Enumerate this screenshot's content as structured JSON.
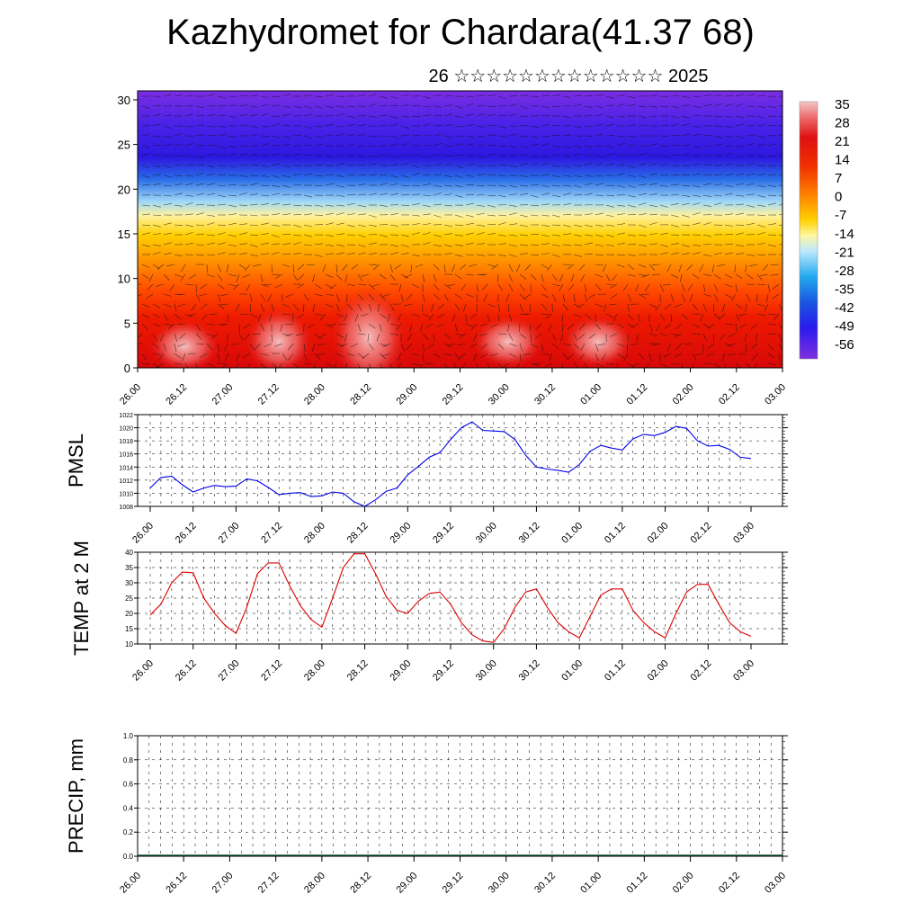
{
  "title": "Kazhydromet for Chardara(41.37 68)",
  "subtitle": "26 ☆☆☆☆☆☆☆☆☆☆☆☆☆ 2025",
  "chart_data": [
    {
      "type": "heatmap",
      "title": "",
      "ylim": [
        0,
        31
      ],
      "yticks": [
        0,
        5,
        10,
        15,
        20,
        25,
        30
      ],
      "x_tick_labels": [
        "26.00",
        "26.12",
        "27.00",
        "27.12",
        "28.00",
        "28.12",
        "29.00",
        "29.12",
        "30.00",
        "30.12",
        "01.00",
        "01.12",
        "02.00",
        "02.12",
        "03.00"
      ],
      "colorbar_labels": [
        "35",
        "28",
        "21",
        "14",
        "7",
        "0",
        "-7",
        "-14",
        "-21",
        "-28",
        "-35",
        "-42",
        "-49",
        "-56"
      ],
      "colorbar_range": [
        -63,
        42
      ],
      "overlay": "wind barbs"
    },
    {
      "type": "line",
      "ylabel": "PMSL",
      "ylim": [
        1008,
        1022
      ],
      "yticks": [
        "1008",
        "1010",
        "1012",
        "1014",
        "1016",
        "1018",
        "1020",
        "1022"
      ],
      "x_tick_labels": [
        "26.00",
        "26.12",
        "27.00",
        "27.12",
        "28.00",
        "28.12",
        "29.00",
        "29.12",
        "30.00",
        "30.12",
        "01.00",
        "01.12",
        "02.00",
        "02.12",
        "03.00"
      ],
      "color": "#0000ee",
      "values": [
        1010.8,
        1012.4,
        1012.6,
        1011.3,
        1010.2,
        1010.8,
        1011.2,
        1011.0,
        1011.1,
        1012.2,
        1011.9,
        1010.9,
        1009.8,
        1010.0,
        1010.1,
        1009.5,
        1009.6,
        1010.2,
        1010.0,
        1008.7,
        1008.0,
        1009.0,
        1010.3,
        1010.8,
        1012.8,
        1014.1,
        1015.5,
        1016.2,
        1018.2,
        1020.0,
        1020.9,
        1019.6,
        1019.5,
        1019.4,
        1018.2,
        1015.8,
        1014.0,
        1013.7,
        1013.5,
        1013.2,
        1014.4,
        1016.4,
        1017.3,
        1016.9,
        1016.6,
        1018.3,
        1019.0,
        1018.8,
        1019.3,
        1020.2,
        1019.9,
        1018.0,
        1017.2,
        1017.3,
        1016.7,
        1015.5,
        1015.3
      ],
      "grid": true
    },
    {
      "type": "line",
      "ylabel": "TEMP at 2 M",
      "ylim": [
        10,
        40
      ],
      "yticks": [
        "10",
        "15",
        "20",
        "25",
        "30",
        "35",
        "40"
      ],
      "x_tick_labels": [
        "26.00",
        "26.12",
        "27.00",
        "27.12",
        "28.00",
        "28.12",
        "29.00",
        "29.12",
        "30.00",
        "30.12",
        "01.00",
        "01.12",
        "02.00",
        "02.12",
        "03.00"
      ],
      "color": "#dd0000",
      "values": [
        19.5,
        23,
        30,
        33.5,
        33.3,
        25,
        20,
        16,
        13.5,
        22,
        33,
        36.5,
        36.5,
        29,
        22.5,
        18,
        15.5,
        25,
        35,
        39.5,
        39.5,
        33,
        25.5,
        21,
        20,
        24,
        26.5,
        27,
        23,
        17,
        13,
        11,
        10.5,
        15,
        22,
        27,
        28,
        22,
        17,
        14,
        12,
        19,
        26,
        28,
        28,
        21,
        17,
        14,
        12,
        20,
        27,
        29.5,
        29.5,
        23,
        17,
        14,
        12.5
      ],
      "grid": true
    },
    {
      "type": "bar",
      "ylabel": "PRECIP, mm",
      "ylim": [
        0,
        1
      ],
      "yticks": [
        "0.0",
        "0.2",
        "0.4",
        "0.6",
        "0.8",
        "1.0"
      ],
      "x_tick_labels": [
        "26.00",
        "26.12",
        "27.00",
        "27.12",
        "28.00",
        "28.12",
        "29.00",
        "29.12",
        "30.00",
        "30.12",
        "01.00",
        "01.12",
        "02.00",
        "02.12",
        "03.00"
      ],
      "values": [],
      "grid": true
    }
  ]
}
